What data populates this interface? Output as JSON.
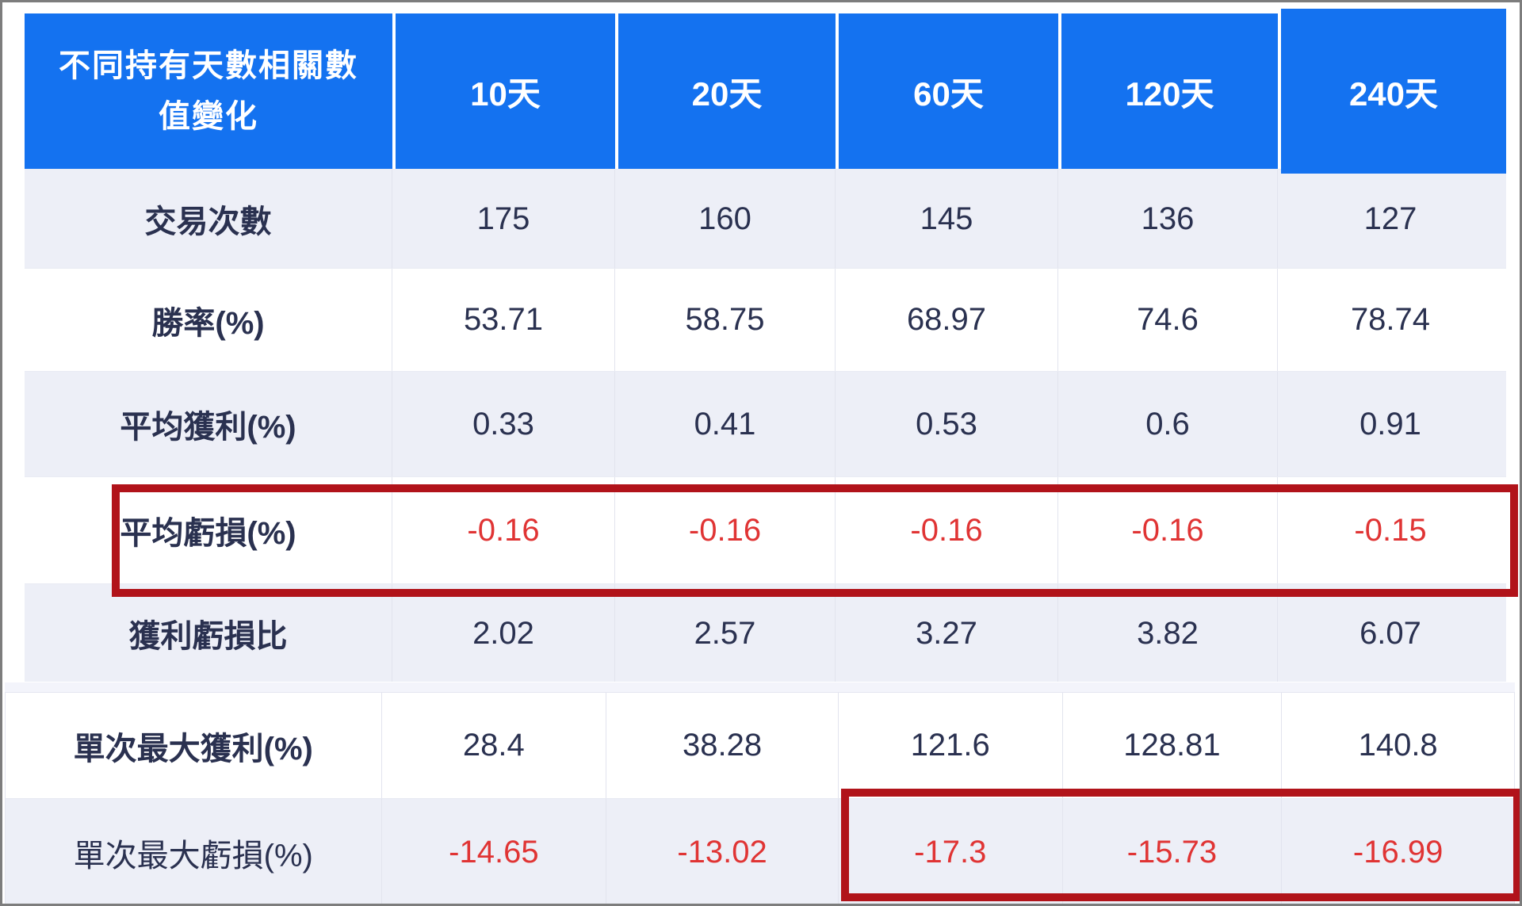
{
  "chart_data": {
    "type": "table",
    "title": "不同持有天數相關數值變化",
    "columns": [
      "10天",
      "20天",
      "60天",
      "120天",
      "240天"
    ],
    "rows": [
      {
        "label": "交易次數",
        "values": [
          175,
          160,
          145,
          136,
          127
        ]
      },
      {
        "label": "勝率(%)",
        "values": [
          53.71,
          58.75,
          68.97,
          74.6,
          78.74
        ]
      },
      {
        "label": "平均獲利(%)",
        "values": [
          0.33,
          0.41,
          0.53,
          0.6,
          0.91
        ]
      },
      {
        "label": "平均虧損(%)",
        "values": [
          -0.16,
          -0.16,
          -0.16,
          -0.16,
          -0.15
        ]
      },
      {
        "label": "獲利虧損比",
        "values": [
          2.02,
          2.57,
          3.27,
          3.82,
          6.07
        ]
      },
      {
        "label": "單次最大獲利(%)",
        "values": [
          28.4,
          38.28,
          121.6,
          128.81,
          140.8
        ]
      },
      {
        "label": "單次最大虧損(%)",
        "values": [
          -14.65,
          -13.02,
          -17.3,
          -15.73,
          -16.99
        ]
      }
    ],
    "annotations": [
      {
        "shape": "rectangle",
        "color": "#b1131a",
        "target": "平均虧損(%) row — all five columns highlighted"
      },
      {
        "shape": "rectangle",
        "color": "#b1131a",
        "target": "單次最大虧損(%) row — 60天, 120天, 240天 cells highlighted"
      }
    ],
    "layout": {
      "header_background": "#1472f0",
      "striped_rows": true,
      "negative_value_color": "#e03434"
    }
  },
  "table": {
    "title": "不同持有天數相關數值變化",
    "columns": [
      "10天",
      "20天",
      "60天",
      "120天",
      "240天"
    ],
    "rows": [
      {
        "label": "交易次數",
        "values": [
          "175",
          "160",
          "145",
          "136",
          "127"
        ]
      },
      {
        "label": "勝率(%)",
        "values": [
          "53.71",
          "58.75",
          "68.97",
          "74.6",
          "78.74"
        ]
      },
      {
        "label": "平均獲利(%)",
        "values": [
          "0.33",
          "0.41",
          "0.53",
          "0.6",
          "0.91"
        ]
      },
      {
        "label": "平均虧損(%)",
        "values": [
          "-0.16",
          "-0.16",
          "-0.16",
          "-0.16",
          "-0.15"
        ]
      },
      {
        "label": "獲利虧損比",
        "values": [
          "2.02",
          "2.57",
          "3.27",
          "3.82",
          "6.07"
        ]
      },
      {
        "label": "單次最大獲利(%)",
        "values": [
          "28.4",
          "38.28",
          "121.6",
          "128.81",
          "140.8"
        ]
      },
      {
        "label": "單次最大虧損(%)",
        "values": [
          "-14.65",
          "-13.02",
          "-17.3",
          "-15.73",
          "-16.99"
        ]
      }
    ]
  },
  "colors": {
    "header_blue": "#1472f0",
    "header_text": "#ffffff",
    "striped_row": "#edeff7",
    "text_navy": "#2a3150",
    "negative_red": "#e03434",
    "annotation_red": "#b1131a",
    "cell_border": "#e2e4ee",
    "outer_frame": "#7d7d7d"
  }
}
